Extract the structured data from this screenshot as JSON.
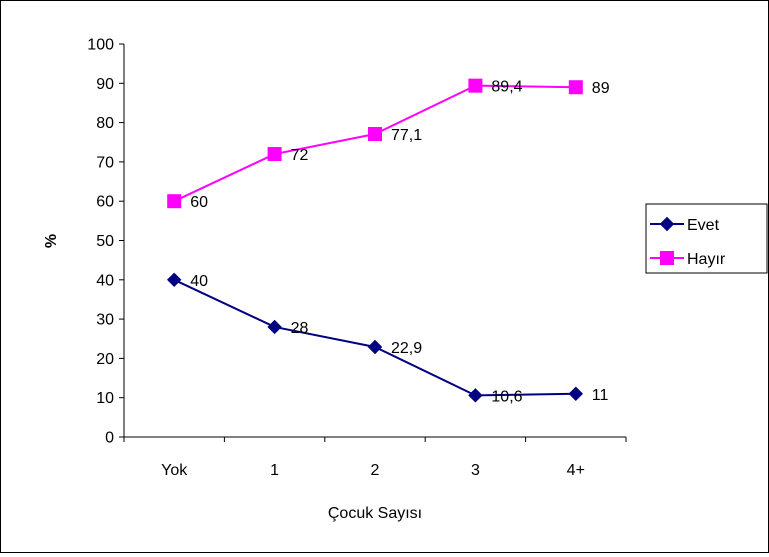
{
  "chart_data": {
    "type": "line",
    "categories": [
      "Yok",
      "1",
      "2",
      "3",
      "4+"
    ],
    "series": [
      {
        "name": "Evet",
        "values": [
          40,
          28,
          22.9,
          10.6,
          11
        ],
        "labels": [
          "40",
          "28",
          "22,9",
          "10,6",
          "11"
        ],
        "color": "#000080",
        "marker": "diamond"
      },
      {
        "name": "Hayır",
        "values": [
          60,
          72,
          77.1,
          89.4,
          89
        ],
        "labels": [
          "60",
          "72",
          "77,1",
          "89,4",
          "89"
        ],
        "color": "#FF00FF",
        "marker": "square"
      }
    ],
    "xlabel": "Çocuk Sayısı",
    "ylabel": "%",
    "ylim": [
      0,
      100
    ],
    "yticks": [
      0,
      10,
      20,
      30,
      40,
      50,
      60,
      70,
      80,
      90,
      100
    ],
    "grid": false,
    "legend": "right"
  }
}
